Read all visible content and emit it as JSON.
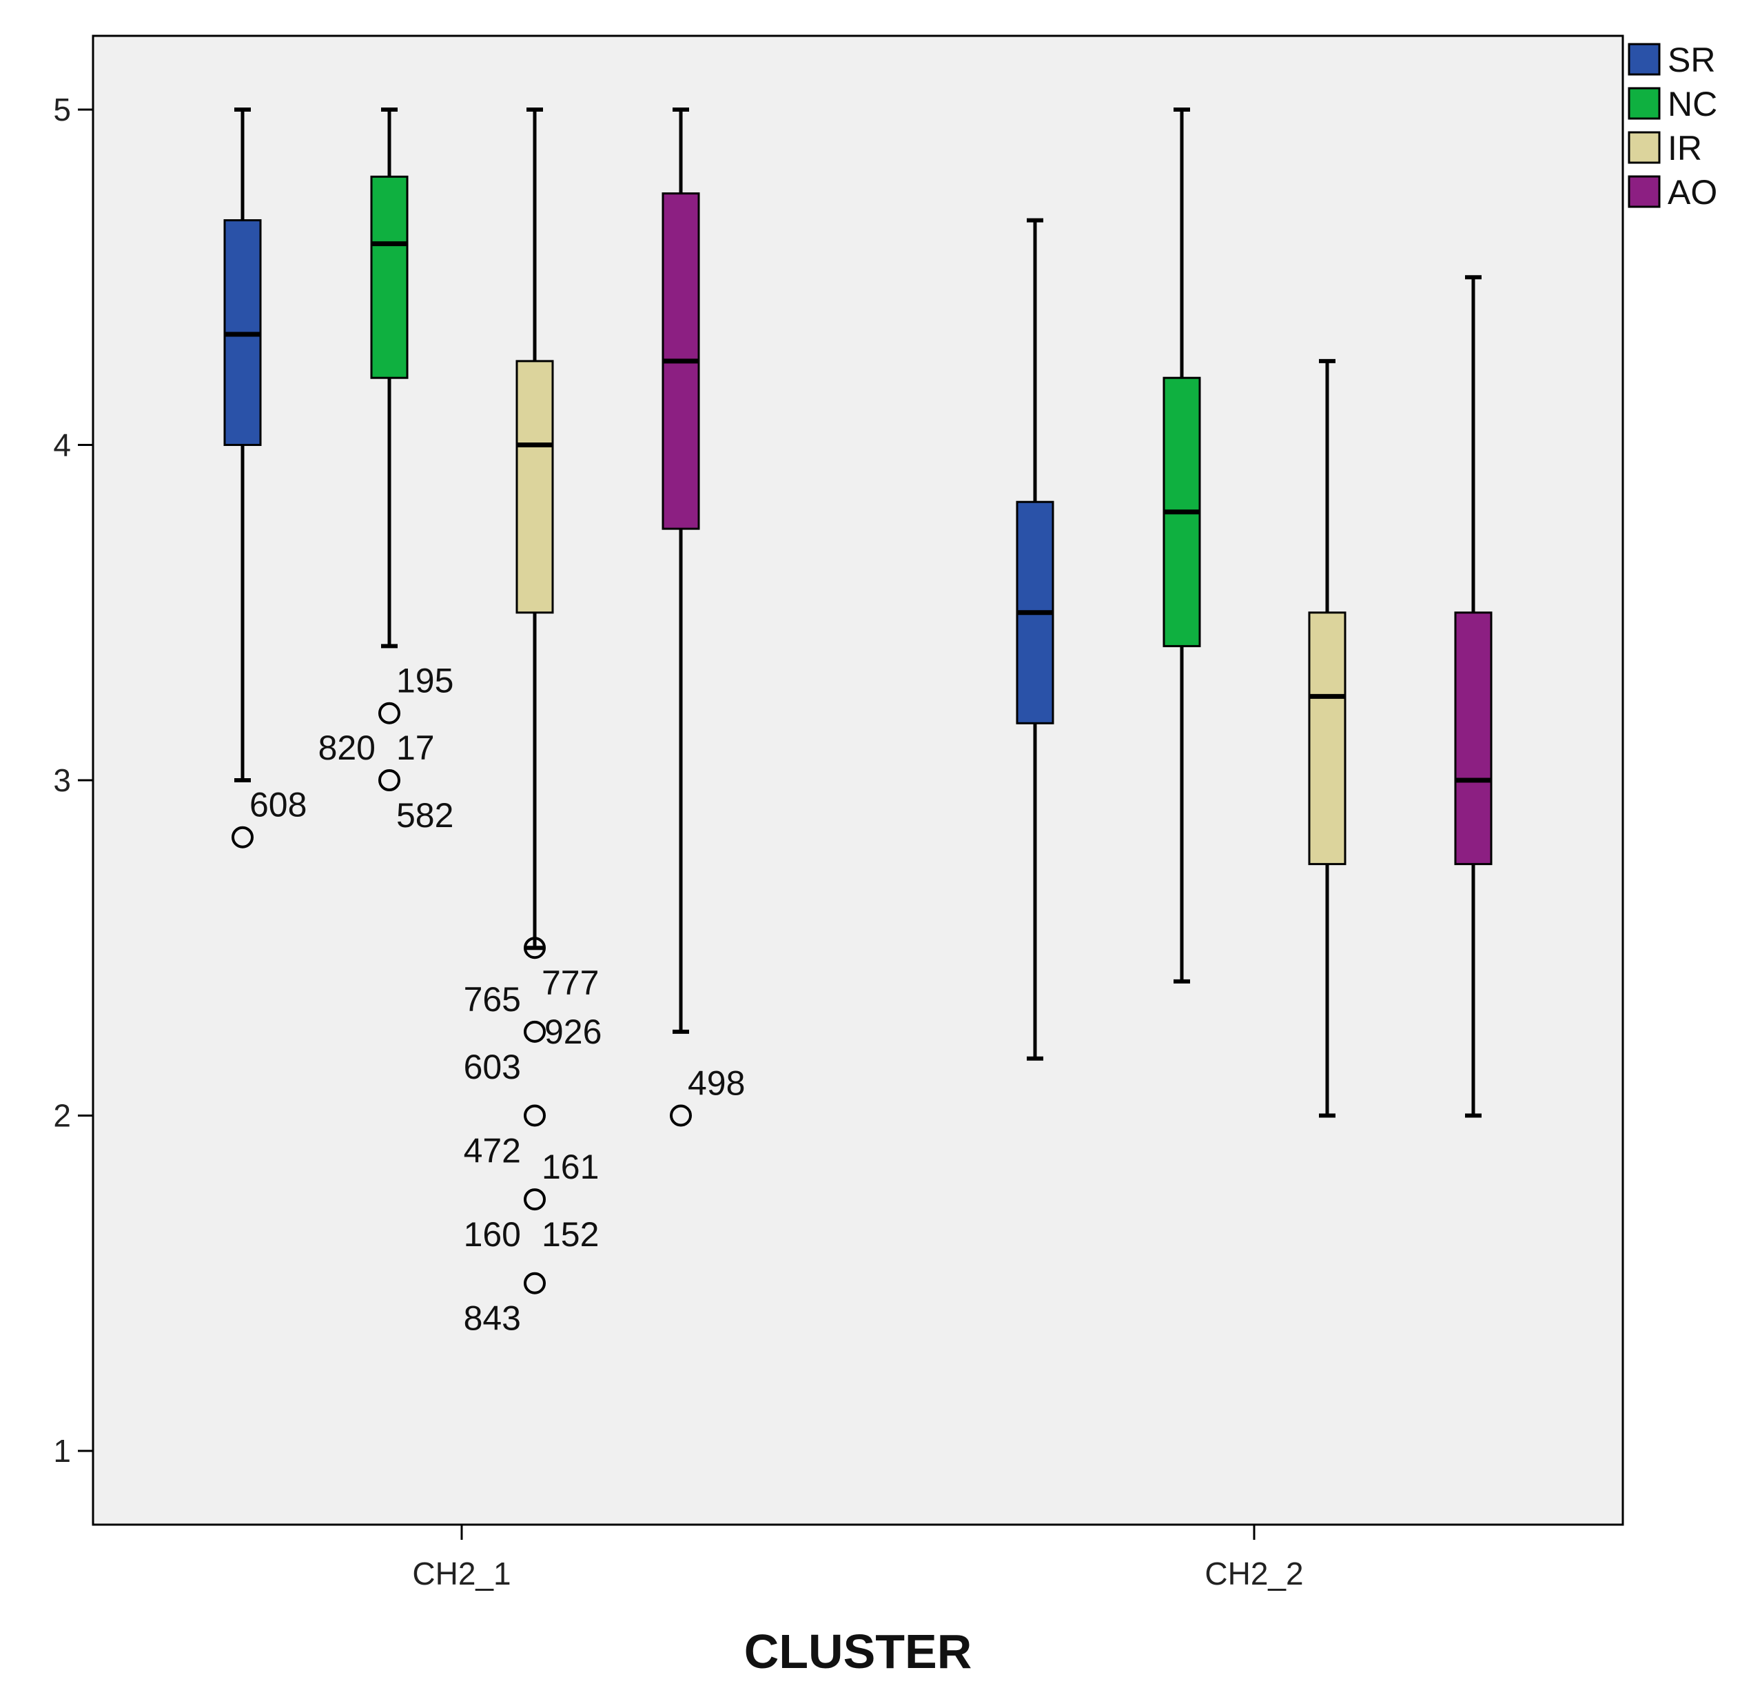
{
  "chart_data": {
    "type": "boxplot",
    "title": "",
    "xlabel": "CLUSTER",
    "ylabel": "",
    "ylim": [
      0.78,
      5.22
    ],
    "yticks": [
      "1",
      "2",
      "3",
      "4",
      "5"
    ],
    "categories": [
      "CH2_1",
      "CH2_2"
    ],
    "legend_position": "top-right",
    "series": [
      {
        "name": "SR",
        "color": "#2a52a8",
        "boxes": [
          {
            "min": 3.0,
            "q1": 4.0,
            "median": 4.33,
            "q3": 4.67,
            "max": 5.0,
            "outliers": [
              {
                "value": 2.83,
                "labels": [
                  {
                    "text": "608",
                    "place": "ur"
                  }
                ]
              }
            ]
          },
          {
            "min": 2.17,
            "q1": 3.17,
            "median": 3.5,
            "q3": 3.83,
            "max": 4.67,
            "outliers": []
          }
        ]
      },
      {
        "name": "NC",
        "color": "#0fb040",
        "boxes": [
          {
            "min": 3.4,
            "q1": 4.2,
            "median": 4.6,
            "q3": 4.8,
            "max": 5.0,
            "outliers": [
              {
                "value": 3.2,
                "labels": [
                  {
                    "text": "195",
                    "place": "ur"
                  }
                ]
              },
              {
                "value": 3.0,
                "labels": [
                  {
                    "text": "820",
                    "place": "ul"
                  },
                  {
                    "text": "17",
                    "place": "ur"
                  },
                  {
                    "text": "582",
                    "place": "lr"
                  }
                ]
              }
            ]
          },
          {
            "min": 2.4,
            "q1": 3.4,
            "median": 3.8,
            "q3": 4.2,
            "max": 5.0,
            "outliers": []
          }
        ]
      },
      {
        "name": "IR",
        "color": "#dcd49c",
        "boxes": [
          {
            "min": 2.5,
            "q1": 3.5,
            "median": 4.0,
            "q3": 4.25,
            "max": 5.0,
            "outliers": [
              {
                "value": 2.5,
                "labels": [
                  {
                    "text": "777",
                    "place": "lr"
                  }
                ]
              },
              {
                "value": 2.25,
                "labels": [
                  {
                    "text": "765",
                    "place": "ul"
                  },
                  {
                    "text": "926",
                    "place": "r"
                  },
                  {
                    "text": "603",
                    "place": "ll"
                  }
                ]
              },
              {
                "value": 2.0,
                "labels": [
                  {
                    "text": "472",
                    "place": "ll"
                  }
                ]
              },
              {
                "value": 1.75,
                "labels": [
                  {
                    "text": "161",
                    "place": "ur"
                  },
                  {
                    "text": "152",
                    "place": "lr"
                  },
                  {
                    "text": "160",
                    "place": "ll"
                  }
                ]
              },
              {
                "value": 1.5,
                "labels": [
                  {
                    "text": "843",
                    "place": "ll"
                  }
                ]
              }
            ]
          },
          {
            "min": 2.0,
            "q1": 2.75,
            "median": 3.25,
            "q3": 3.5,
            "max": 4.25,
            "outliers": []
          }
        ]
      },
      {
        "name": "AO",
        "color": "#8c1f82",
        "boxes": [
          {
            "min": 2.25,
            "q1": 3.75,
            "median": 4.25,
            "q3": 4.75,
            "max": 5.0,
            "outliers": [
              {
                "value": 2.0,
                "labels": [
                  {
                    "text": "498",
                    "place": "ur"
                  }
                ]
              }
            ]
          },
          {
            "min": 2.0,
            "q1": 2.75,
            "median": 3.0,
            "q3": 3.5,
            "max": 4.5,
            "outliers": []
          }
        ]
      }
    ]
  }
}
